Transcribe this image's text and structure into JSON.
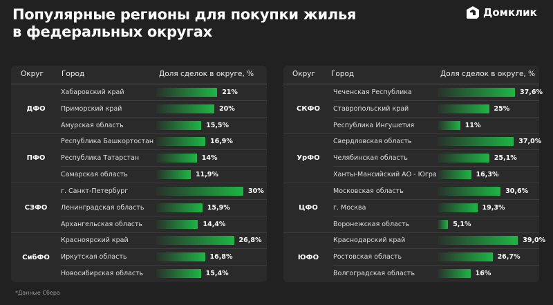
{
  "title": [
    "Популярные регионы для покупки жилья",
    "в федеральных округах"
  ],
  "logo": "Домклик",
  "footnote": "*Данные Сбера",
  "colors": {
    "bar": "#1db645",
    "background": "#212121",
    "panel": "#2a2a2a"
  },
  "chart_data": {
    "type": "table",
    "columns": [
      "Округ",
      "Город",
      "Доля сделок в округе, %"
    ],
    "panels": [
      {
        "groups": [
          {
            "okrug": "ДФО",
            "rows": [
              {
                "city": "Хабаровский край",
                "value": 21,
                "label": "21%"
              },
              {
                "city": "Приморский край",
                "value": 20,
                "label": "20%"
              },
              {
                "city": "Амурская область",
                "value": 15.5,
                "label": "15,5%"
              }
            ]
          },
          {
            "okrug": "ПФО",
            "rows": [
              {
                "city": "Республика Башкортостан",
                "value": 16.9,
                "label": "16,9%"
              },
              {
                "city": "Республика Татарстан",
                "value": 14,
                "label": "14%"
              },
              {
                "city": "Самарская область",
                "value": 11.9,
                "label": "11,9%"
              }
            ]
          },
          {
            "okrug": "СЗФО",
            "rows": [
              {
                "city": "г. Санкт-Петербург",
                "value": 30,
                "label": "30%"
              },
              {
                "city": "Ленинградская область",
                "value": 15.9,
                "label": "15,9%"
              },
              {
                "city": "Архангельская область",
                "value": 14.4,
                "label": "14,4%"
              }
            ]
          },
          {
            "okrug": "СибФО",
            "rows": [
              {
                "city": "Красноярский край",
                "value": 26.8,
                "label": "26,8%"
              },
              {
                "city": "Иркутская область",
                "value": 16.8,
                "label": "16,8%"
              },
              {
                "city": "Новосибирская область",
                "value": 15.4,
                "label": "15,4%"
              }
            ]
          }
        ]
      },
      {
        "groups": [
          {
            "okrug": "СКФО",
            "rows": [
              {
                "city": "Чеченская Республика",
                "value": 37.6,
                "label": "37,6%"
              },
              {
                "city": "Ставропольский край",
                "value": 25,
                "label": "25%"
              },
              {
                "city": "Республика Ингушетия",
                "value": 11,
                "label": "11%"
              }
            ]
          },
          {
            "okrug": "УрФО",
            "rows": [
              {
                "city": "Свердловская область",
                "value": 37.0,
                "label": "37,0%"
              },
              {
                "city": "Челябинская область",
                "value": 25.1,
                "label": "25,1%"
              },
              {
                "city": "Ханты-Мансийский АО - Югра",
                "value": 16.3,
                "label": "16,3%"
              }
            ]
          },
          {
            "okrug": "ЦФО",
            "rows": [
              {
                "city": "Московская область",
                "value": 30.6,
                "label": "30,6%"
              },
              {
                "city": "г. Москва",
                "value": 19.3,
                "label": "19,3%"
              },
              {
                "city": "Воронежская область",
                "value": 5.1,
                "label": "5,1%"
              }
            ]
          },
          {
            "okrug": "ЮФО",
            "rows": [
              {
                "city": "Краснодарский край",
                "value": 39.0,
                "label": "39,0%"
              },
              {
                "city": "Ростовская область",
                "value": 26.7,
                "label": "26,7%"
              },
              {
                "city": "Волгоградская область",
                "value": 16,
                "label": "16%"
              }
            ]
          }
        ]
      }
    ]
  }
}
